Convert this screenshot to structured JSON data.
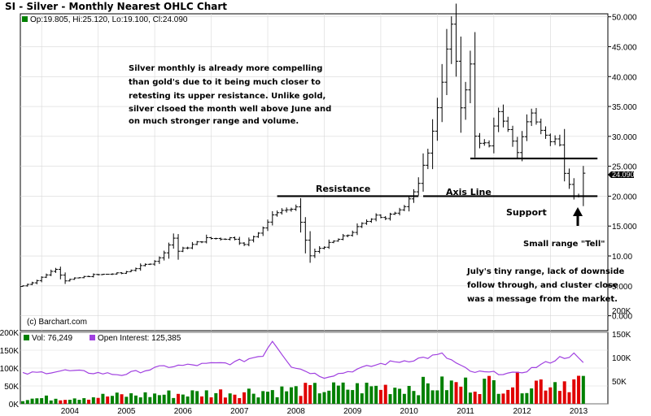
{
  "title": "SI - Silver - Monthly Nearest OHLC Chart",
  "ohlc_readout": "Op:19.805, Hi:25.120, Lo:19.100, Cl:24.090",
  "last_price_label": "24.090",
  "copyright": "(c) Barchart.com",
  "volume_readout": "Vol: 76,249",
  "oi_readout": "Open Interest: 125,385",
  "annotations": {
    "commentary": [
      "Silver monthly is already more compelling",
      "than gold's due to it being much closer to",
      "retesting its upper resistance.  Unlike gold,",
      "silver clsoed the month well above June and",
      "on much stronger range and volume."
    ],
    "resistance": "Resistance",
    "axis_line": "Axis Line",
    "support": "Support",
    "tell": "Small range \"Tell\"",
    "july_note": [
      "July's tiny range, lack of downside",
      "follow through, and cluster close",
      "was  a message from the market."
    ]
  },
  "colors": {
    "price_bars": "#000000",
    "volume_up": "#008000",
    "volume_down": "#e00000",
    "open_interest": "#a040e0",
    "grid": "#d8d8d8"
  },
  "chart_data": [
    {
      "type": "ohlc",
      "series_name": "SI",
      "x_labels": [
        "2004",
        "2005",
        "2006",
        "2007",
        "2008",
        "2009",
        "2010",
        "2011",
        "2012",
        "2013"
      ],
      "y_ticks": [
        "0.000",
        "5.000",
        "10.00",
        "15.000",
        "20.000",
        "25.000",
        "30.000",
        "35.000",
        "40.000",
        "45.000",
        "50.000"
      ],
      "ylim": [
        -2.5,
        50.5
      ],
      "grid": true,
      "monthly_close_anchors": [
        {
          "date": "2003-09",
          "value": 5.0
        },
        {
          "date": "2003-12",
          "value": 5.9
        },
        {
          "date": "2004-04",
          "value": 7.9
        },
        {
          "date": "2004-06",
          "value": 5.9
        },
        {
          "date": "2004-12",
          "value": 6.8
        },
        {
          "date": "2005-06",
          "value": 7.1
        },
        {
          "date": "2005-12",
          "value": 8.8
        },
        {
          "date": "2006-02",
          "value": 9.6
        },
        {
          "date": "2006-05",
          "value": 13.0
        },
        {
          "date": "2006-06",
          "value": 10.8
        },
        {
          "date": "2006-12",
          "value": 12.9
        },
        {
          "date": "2007-06",
          "value": 13.0
        },
        {
          "date": "2007-08",
          "value": 11.8
        },
        {
          "date": "2007-12",
          "value": 14.8
        },
        {
          "date": "2008-03",
          "value": 17.5
        },
        {
          "date": "2008-07",
          "value": 18.0
        },
        {
          "date": "2008-10",
          "value": 10.0
        },
        {
          "date": "2008-12",
          "value": 11.3
        },
        {
          "date": "2009-06",
          "value": 13.5
        },
        {
          "date": "2009-12",
          "value": 17.0
        },
        {
          "date": "2010-02",
          "value": 16.1
        },
        {
          "date": "2010-06",
          "value": 18.6
        },
        {
          "date": "2010-09",
          "value": 21.8
        },
        {
          "date": "2010-12",
          "value": 30.6
        },
        {
          "date": "2011-04",
          "value": 48.6
        },
        {
          "date": "2011-06",
          "value": 35.0
        },
        {
          "date": "2011-08",
          "value": 41.7
        },
        {
          "date": "2011-09",
          "value": 29.9
        },
        {
          "date": "2011-12",
          "value": 28.0
        },
        {
          "date": "2012-02",
          "value": 34.5
        },
        {
          "date": "2012-06",
          "value": 27.5
        },
        {
          "date": "2012-09",
          "value": 34.6
        },
        {
          "date": "2012-12",
          "value": 30.0
        },
        {
          "date": "2013-03",
          "value": 28.5
        },
        {
          "date": "2013-04",
          "value": 24.0
        },
        {
          "date": "2013-06",
          "value": 19.7
        },
        {
          "date": "2013-07",
          "value": 19.8
        },
        {
          "date": "2013-08",
          "value": 24.09
        }
      ],
      "reference_lines": [
        {
          "name": "Resistance",
          "value": 20.0,
          "from": "2008-03",
          "to": "2010-09"
        },
        {
          "name": "Axis Line",
          "value": 20.0,
          "from": "2010-10",
          "to": "2013-11"
        },
        {
          "name": "Upper resistance",
          "value": 26.3,
          "from": "2011-08",
          "to": "2013-11"
        }
      ]
    },
    {
      "type": "bar+line",
      "series": [
        {
          "name": "Vol",
          "last": 76249
        },
        {
          "name": "Open Interest",
          "last": 125385
        }
      ],
      "y_ticks_left": [
        "0K",
        "50K",
        "100K",
        "150K",
        "200K"
      ],
      "y_ticks_right": [
        "50K",
        "100K",
        "150K",
        "200K"
      ],
      "oi_anchors": [
        {
          "date": "2003-09",
          "value": 100000
        },
        {
          "date": "2004-06",
          "value": 108000
        },
        {
          "date": "2005-06",
          "value": 98000
        },
        {
          "date": "2006-03",
          "value": 118000
        },
        {
          "date": "2007-06",
          "value": 128000
        },
        {
          "date": "2007-12",
          "value": 148000
        },
        {
          "date": "2008-02",
          "value": 185000
        },
        {
          "date": "2008-06",
          "value": 120000
        },
        {
          "date": "2009-01",
          "value": 92000
        },
        {
          "date": "2010-01",
          "value": 125000
        },
        {
          "date": "2010-09",
          "value": 138000
        },
        {
          "date": "2011-02",
          "value": 148000
        },
        {
          "date": "2011-08",
          "value": 105000
        },
        {
          "date": "2012-06",
          "value": 100000
        },
        {
          "date": "2013-03",
          "value": 140000
        },
        {
          "date": "2013-06",
          "value": 148000
        },
        {
          "date": "2013-08",
          "value": 125385
        }
      ]
    }
  ]
}
